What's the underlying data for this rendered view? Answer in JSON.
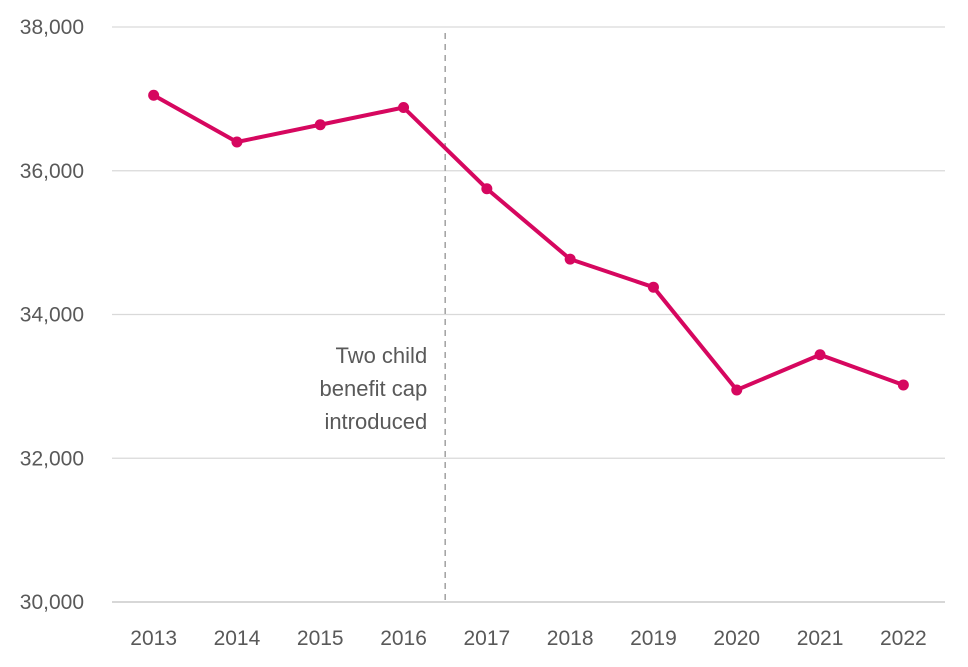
{
  "chart_data": {
    "type": "line",
    "title": "",
    "xlabel": "",
    "ylabel": "",
    "categories": [
      "2013",
      "2014",
      "2015",
      "2016",
      "2017",
      "2018",
      "2019",
      "2020",
      "2021",
      "2022"
    ],
    "series": [
      {
        "values": [
          37050,
          36400,
          36640,
          36880,
          35750,
          34770,
          34380,
          32950,
          33440,
          33020
        ],
        "color": "#d6075f"
      }
    ],
    "ylim": [
      30000,
      38000
    ],
    "yticks": [
      30000,
      32000,
      34000,
      36000,
      38000
    ],
    "ytick_labels": [
      "30,000",
      "32,000",
      "34,000",
      "36,000",
      "38,000"
    ],
    "grid": true,
    "legend": "none",
    "annotation": {
      "text_lines": [
        "Two child",
        "benefit cap",
        "introduced"
      ],
      "between_categories": [
        "2016",
        "2017"
      ],
      "line_style": "dashed",
      "line_color": "#a6a6a6"
    }
  }
}
